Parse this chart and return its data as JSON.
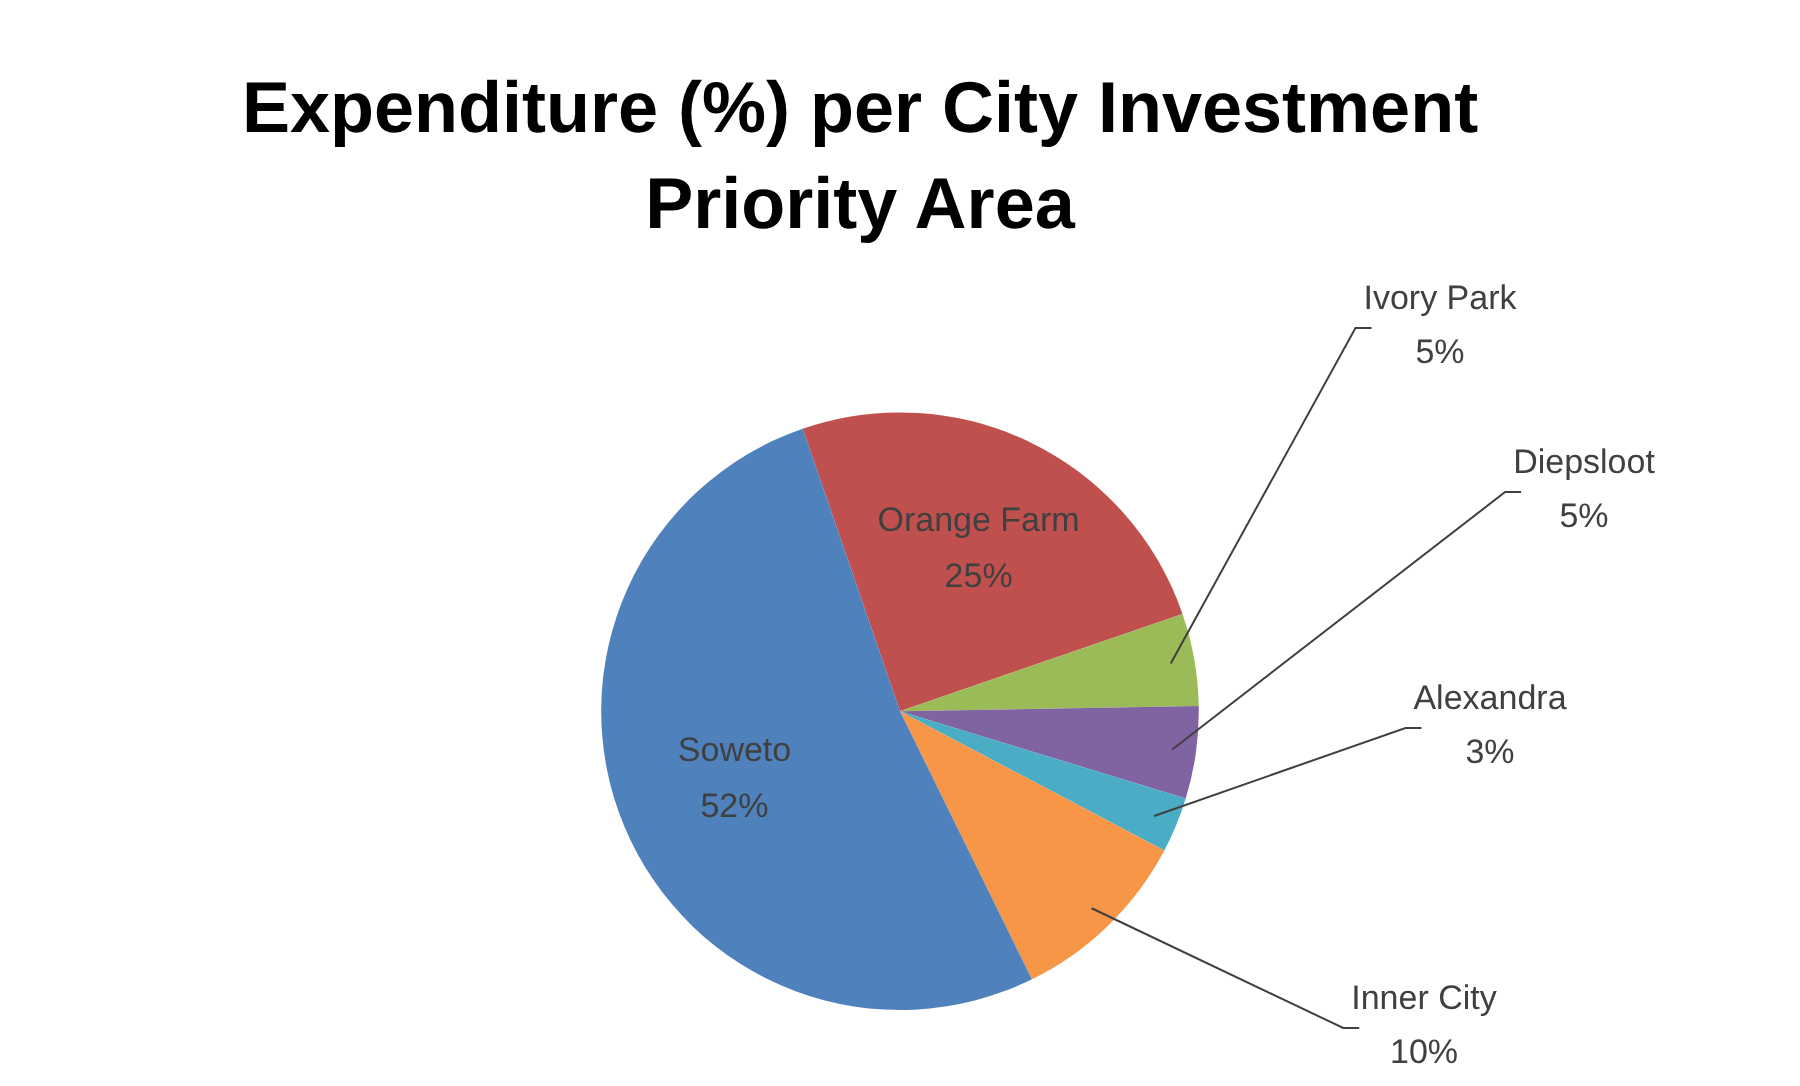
{
  "chart_data": {
    "type": "pie",
    "title": "Expenditure (%) per City Investment Priority Area",
    "categories": [
      "Orange Farm",
      "Ivory Park",
      "Diepsloot",
      "Alexandra",
      "Inner City",
      "Soweto"
    ],
    "values": [
      25,
      5,
      5,
      3,
      10,
      52
    ],
    "value_labels": [
      "25%",
      "5%",
      "5%",
      "3%",
      "10%",
      "52%"
    ],
    "colors": [
      "#c0504d",
      "#9bbb59",
      "#8064a2",
      "#4bacc6",
      "#f79646",
      "#4f81bd"
    ],
    "legend": false
  }
}
